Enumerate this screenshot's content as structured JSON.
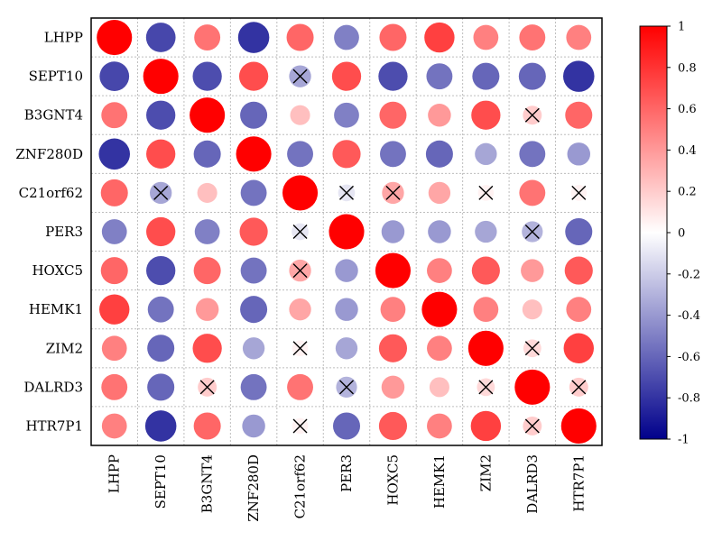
{
  "chart_data": {
    "type": "heatmap",
    "title": "",
    "xlabel": "",
    "ylabel": "",
    "labels": [
      "LHPP",
      "SEPT10",
      "B3GNT4",
      "ZNF280D",
      "C21orf62",
      "PER3",
      "HOXC5",
      "HEMK1",
      "ZIM2",
      "DALRD3",
      "HTR7P1"
    ],
    "matrix": [
      [
        1,
        -0.72,
        0.55,
        -0.8,
        0.6,
        -0.5,
        0.6,
        0.75,
        0.5,
        0.55,
        0.5
      ],
      [
        -0.72,
        1,
        -0.7,
        0.7,
        -0.35,
        0.7,
        -0.7,
        -0.55,
        -0.6,
        -0.6,
        -0.8
      ],
      [
        0.55,
        -0.7,
        1,
        -0.6,
        0.25,
        -0.5,
        0.6,
        0.4,
        0.7,
        0.2,
        0.6
      ],
      [
        -0.8,
        0.7,
        -0.6,
        1,
        -0.55,
        0.65,
        -0.55,
        -0.6,
        -0.35,
        -0.55,
        -0.4
      ],
      [
        0.6,
        -0.35,
        0.25,
        -0.55,
        1,
        -0.1,
        0.35,
        0.35,
        0.05,
        0.55,
        0.05
      ],
      [
        -0.5,
        0.7,
        -0.5,
        0.65,
        -0.1,
        1,
        -0.4,
        -0.4,
        -0.35,
        -0.3,
        -0.6
      ],
      [
        0.6,
        -0.7,
        0.6,
        -0.55,
        0.35,
        -0.4,
        1,
        0.5,
        0.65,
        0.4,
        0.65
      ],
      [
        0.75,
        -0.55,
        0.4,
        -0.6,
        0.35,
        -0.4,
        0.5,
        1,
        0.5,
        0.25,
        0.5
      ],
      [
        0.5,
        -0.6,
        0.7,
        -0.35,
        0.05,
        -0.35,
        0.65,
        0.5,
        1,
        0.15,
        0.75
      ],
      [
        0.55,
        -0.6,
        0.2,
        -0.55,
        0.55,
        -0.3,
        0.4,
        0.25,
        0.15,
        1,
        0.2
      ],
      [
        0.5,
        -0.8,
        0.6,
        -0.4,
        0.05,
        -0.6,
        0.65,
        0.5,
        0.75,
        0.2,
        1
      ]
    ],
    "crossed": [
      [
        1,
        4
      ],
      [
        2,
        9
      ],
      [
        4,
        1
      ],
      [
        4,
        5
      ],
      [
        4,
        6
      ],
      [
        4,
        8
      ],
      [
        4,
        10
      ],
      [
        5,
        4
      ],
      [
        5,
        9
      ],
      [
        6,
        4
      ],
      [
        8,
        4
      ],
      [
        8,
        9
      ],
      [
        9,
        2
      ],
      [
        9,
        5
      ],
      [
        9,
        8
      ],
      [
        9,
        10
      ],
      [
        10,
        4
      ],
      [
        10,
        9
      ]
    ],
    "colorbar": {
      "range": [
        -1,
        1
      ],
      "ticks": [
        "1",
        "0.8",
        "0.6",
        "0.4",
        "0.2",
        "0",
        "-0.2",
        "-0.4",
        "-0.6",
        "-0.8",
        "-1"
      ],
      "colors": {
        "low": "#00008b",
        "mid": "#ffffff",
        "high": "#ff0000"
      }
    }
  }
}
